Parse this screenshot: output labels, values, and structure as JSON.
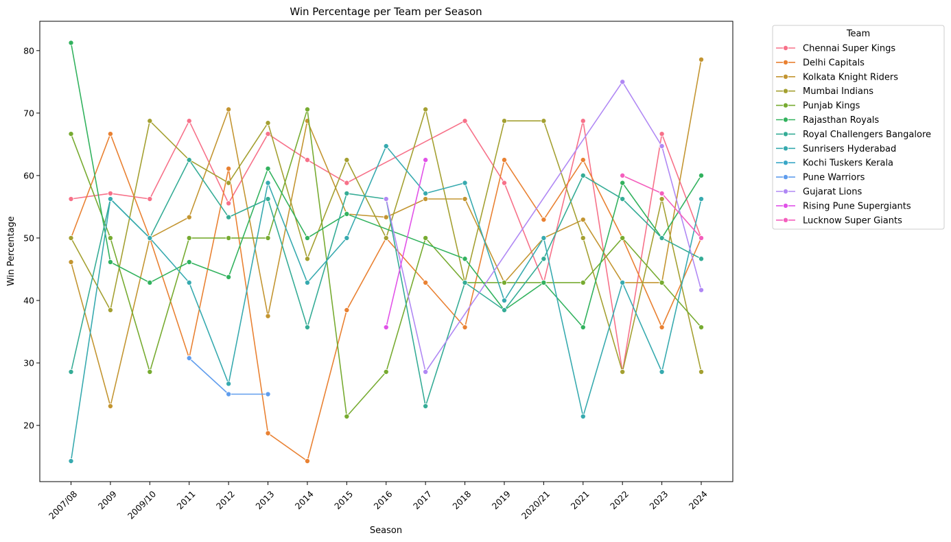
{
  "chart_data": {
    "type": "line",
    "title": "Win Percentage per Team per Season",
    "xlabel": "Season",
    "ylabel": "Win Percentage",
    "ylim": [
      11,
      84.7
    ],
    "yticks": [
      20,
      30,
      40,
      50,
      60,
      70,
      80
    ],
    "grid": false,
    "legend": {
      "title": "Team",
      "placement": "outside-top-right"
    },
    "categories": [
      "2007/08",
      "2009",
      "2009/10",
      "2011",
      "2012",
      "2013",
      "2014",
      "2015",
      "2016",
      "2017",
      "2018",
      "2019",
      "2020/21",
      "2021",
      "2022",
      "2023",
      "2024"
    ],
    "series": [
      {
        "name": "Chennai Super Kings",
        "color": "#f77189",
        "values": [
          56.25,
          57.14,
          56.25,
          68.75,
          55.56,
          66.67,
          62.5,
          58.82,
          null,
          null,
          68.75,
          58.82,
          42.86,
          68.75,
          28.57,
          66.67,
          50.0
        ]
      },
      {
        "name": "Delhi Capitals",
        "color": "#e98132",
        "values": [
          50.0,
          66.67,
          50.0,
          30.77,
          61.11,
          18.75,
          14.29,
          38.46,
          50.0,
          42.86,
          35.71,
          62.5,
          52.94,
          62.5,
          50.0,
          35.71,
          50.0
        ]
      },
      {
        "name": "Kolkata Knight Riders",
        "color": "#c39531",
        "values": [
          46.15,
          23.08,
          50.0,
          53.33,
          70.59,
          37.5,
          68.75,
          53.85,
          53.33,
          56.25,
          56.25,
          42.86,
          50.0,
          52.94,
          42.86,
          42.86,
          78.57
        ]
      },
      {
        "name": "Mumbai Indians",
        "color": "#a4a031",
        "values": [
          50.0,
          38.46,
          68.75,
          62.5,
          58.82,
          68.42,
          46.67,
          62.5,
          50.0,
          70.59,
          42.86,
          68.75,
          68.75,
          50.0,
          28.57,
          56.25,
          28.57
        ]
      },
      {
        "name": "Punjab Kings",
        "color": "#77ab31",
        "values": [
          66.67,
          50.0,
          28.57,
          50.0,
          50.0,
          50.0,
          70.59,
          21.43,
          28.57,
          50.0,
          42.86,
          42.86,
          42.86,
          42.86,
          50.0,
          42.86,
          35.71
        ]
      },
      {
        "name": "Rajasthan Royals",
        "color": "#32b25e",
        "values": [
          81.25,
          46.15,
          42.86,
          46.15,
          43.75,
          61.11,
          50.0,
          53.85,
          null,
          null,
          46.67,
          38.46,
          42.86,
          35.71,
          58.82,
          50.0,
          60.0
        ]
      },
      {
        "name": "Royal Challengers Bangalore",
        "color": "#35ac96",
        "values": [
          28.57,
          56.25,
          50.0,
          62.5,
          53.33,
          56.25,
          35.71,
          57.14,
          56.25,
          23.08,
          42.86,
          38.46,
          46.67,
          60.0,
          56.25,
          50.0,
          46.67
        ]
      },
      {
        "name": "Sunrisers Hyderabad",
        "color": "#37aaaf",
        "values": [
          14.29,
          56.25,
          50.0,
          42.86,
          26.67,
          58.82,
          42.86,
          50.0,
          64.71,
          57.14,
          58.82,
          40.0,
          50.0,
          21.43,
          42.86,
          28.57,
          56.25
        ]
      },
      {
        "name": "Kochi Tuskers Kerala",
        "color": "#39a7c7",
        "values": [
          null,
          null,
          null,
          30.77,
          null,
          null,
          null,
          null,
          null,
          null,
          null,
          null,
          null,
          null,
          null,
          null,
          null
        ]
      },
      {
        "name": "Pune Warriors",
        "color": "#609ded",
        "values": [
          null,
          null,
          null,
          30.77,
          25.0,
          25.0,
          null,
          null,
          null,
          null,
          null,
          null,
          null,
          null,
          null,
          null,
          null
        ]
      },
      {
        "name": "Gujarat Lions",
        "color": "#b088f4",
        "values": [
          null,
          null,
          null,
          null,
          null,
          null,
          null,
          null,
          56.25,
          28.57,
          null,
          null,
          null,
          null,
          75.0,
          64.71,
          41.67
        ]
      },
      {
        "name": "Rising Pune Supergiants",
        "color": "#e152e8",
        "values": [
          null,
          null,
          null,
          null,
          null,
          null,
          null,
          null,
          35.71,
          62.5,
          null,
          null,
          null,
          null,
          null,
          null,
          null
        ]
      },
      {
        "name": "Lucknow Super Giants",
        "color": "#f45fbd",
        "values": [
          null,
          null,
          null,
          null,
          null,
          null,
          null,
          null,
          null,
          null,
          null,
          null,
          null,
          null,
          60.0,
          57.14,
          50.0
        ]
      }
    ]
  }
}
